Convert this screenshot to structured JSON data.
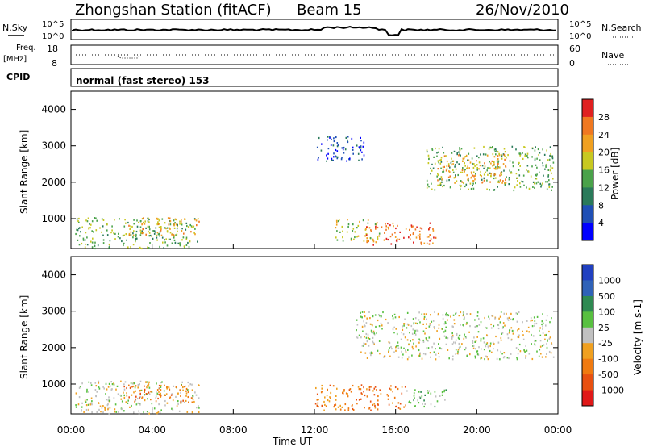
{
  "header": {
    "station": "Zhongshan Station (fitACF)",
    "beam": "Beam 15",
    "date": "26/Nov/2010"
  },
  "strip_panels": {
    "noise": {
      "left_label": "N.Sky",
      "left_ticks": [
        "10^5",
        "10^0"
      ],
      "right_label": "N.Search",
      "right_ticks": [
        "10^5",
        "10^0"
      ]
    },
    "freq": {
      "left_label_top": "Freq.",
      "left_label_unit": "[MHz]",
      "left_ticks": [
        "18",
        "8"
      ],
      "right_label": "Nave",
      "right_ticks": [
        "60",
        "0"
      ]
    },
    "cpid": {
      "left_label": "CPID",
      "text": "normal (fast stereo) 153"
    }
  },
  "chart_data": [
    {
      "type": "heatmap",
      "title": "",
      "quantity": "Power",
      "ylabel": "Slant Range [km]",
      "xlabel": "",
      "ylim": [
        180,
        4500
      ],
      "yticks": [
        "1000",
        "2000",
        "3000",
        "4000"
      ],
      "xlim_hours": [
        0,
        24
      ],
      "colorbar": {
        "label": "Power [dB]",
        "ticks": [
          "4",
          "8",
          "12",
          "16",
          "20",
          "24",
          "28"
        ],
        "colors": [
          "#0000ff",
          "#1f4fb5",
          "#2a7a5a",
          "#4aa24a",
          "#c8c820",
          "#f0a020",
          "#f07820",
          "#e02020"
        ]
      },
      "regions": [
        {
          "t0": 0.2,
          "t1": 6.3,
          "r0": 200,
          "r1": 1050,
          "level": 3
        },
        {
          "t0": 2.8,
          "t1": 6.3,
          "r0": 550,
          "r1": 1050,
          "level": 5
        },
        {
          "t0": 12.0,
          "t1": 14.5,
          "r0": 2600,
          "r1": 3300,
          "level": 1
        },
        {
          "t0": 13.0,
          "t1": 15.2,
          "r0": 400,
          "r1": 1000,
          "level": 4
        },
        {
          "t0": 14.5,
          "t1": 18.0,
          "r0": 300,
          "r1": 900,
          "level": 6
        },
        {
          "t0": 17.5,
          "t1": 23.8,
          "r0": 1800,
          "r1": 3000,
          "level": 3
        },
        {
          "t0": 18.0,
          "t1": 21.5,
          "r0": 2000,
          "r1": 2800,
          "level": 5
        }
      ]
    },
    {
      "type": "heatmap",
      "title": "",
      "quantity": "Velocity",
      "ylabel": "Slant Range [km]",
      "xlabel": "Time UT",
      "ylim": [
        180,
        4500
      ],
      "yticks": [
        "1000",
        "2000",
        "3000",
        "4000"
      ],
      "xlim_hours": [
        0,
        24
      ],
      "xticks": [
        "00:00",
        "04:00",
        "08:00",
        "12:00",
        "16:00",
        "20:00",
        "00:00"
      ],
      "colorbar": {
        "label": "Velocity [m s-1]",
        "ticks": [
          "1000",
          "500",
          "100",
          "25",
          "-25",
          "-100",
          "-500",
          "-1000"
        ],
        "colors": [
          "#2040c0",
          "#2f62b8",
          "#2f8a52",
          "#58c040",
          "#c0c0c0",
          "#f0a020",
          "#f07a10",
          "#e85010",
          "#e01818"
        ]
      },
      "regions": [
        {
          "t0": 0.2,
          "t1": 6.3,
          "r0": 200,
          "r1": 1100,
          "level": 4
        },
        {
          "t0": 2.5,
          "t1": 6.0,
          "r0": 500,
          "r1": 1000,
          "level": 6
        },
        {
          "t0": 12.0,
          "t1": 16.5,
          "r0": 300,
          "r1": 1000,
          "level": 6
        },
        {
          "t0": 14.0,
          "t1": 23.8,
          "r0": 1700,
          "r1": 3000,
          "level": 4
        },
        {
          "t0": 16.5,
          "t1": 18.5,
          "r0": 400,
          "r1": 900,
          "level": 3
        }
      ]
    }
  ]
}
